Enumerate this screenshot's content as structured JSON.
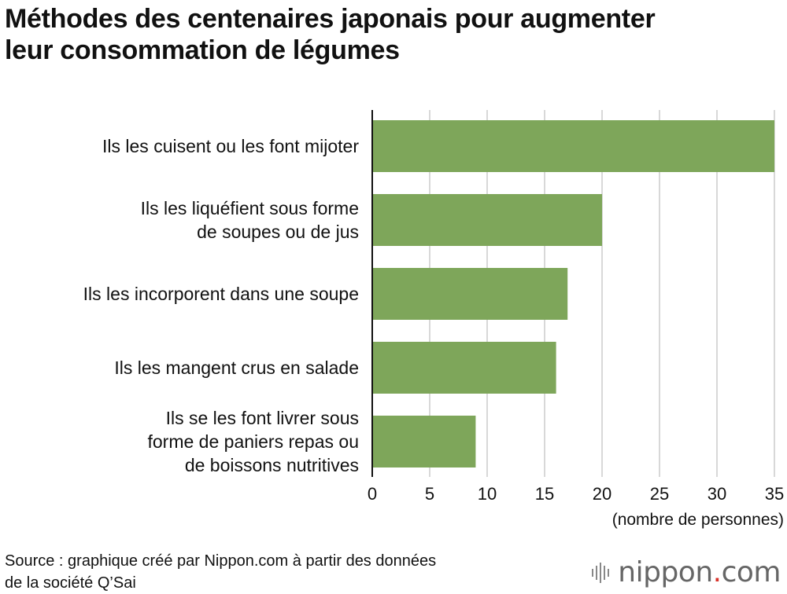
{
  "title_lines": [
    "Méthodes des centenaires japonais pour augmenter",
    "leur consommation de légumes"
  ],
  "source_lines": [
    "Source : graphique créé par Nippon.com à partir des données",
    "de la société Q’Sai"
  ],
  "brand": {
    "name": "nippon",
    "dot": ".",
    "tld": "com",
    "dot_color": "#d9332b"
  },
  "chart_data": {
    "type": "bar",
    "orientation": "horizontal",
    "categories": [
      [
        "Ils les cuisent ou les font mijoter"
      ],
      [
        "Ils les liquéfient sous forme",
        "de soupes ou de jus"
      ],
      [
        "Ils les incorporent dans une soupe"
      ],
      [
        "Ils les mangent crus en salade"
      ],
      [
        "Ils se les font livrer sous",
        "forme de paniers repas ou",
        "de boissons nutritives"
      ]
    ],
    "values": [
      35,
      20,
      17,
      16,
      9
    ],
    "xlim": [
      0,
      35
    ],
    "xticks": [
      0,
      5,
      10,
      15,
      20,
      25,
      30,
      35
    ],
    "xlabel": "(nombre de personnes)",
    "grid": "vertical",
    "bar_color": "#7ea65a",
    "grid_color": "#cccccc",
    "axis_color": "#111111"
  }
}
